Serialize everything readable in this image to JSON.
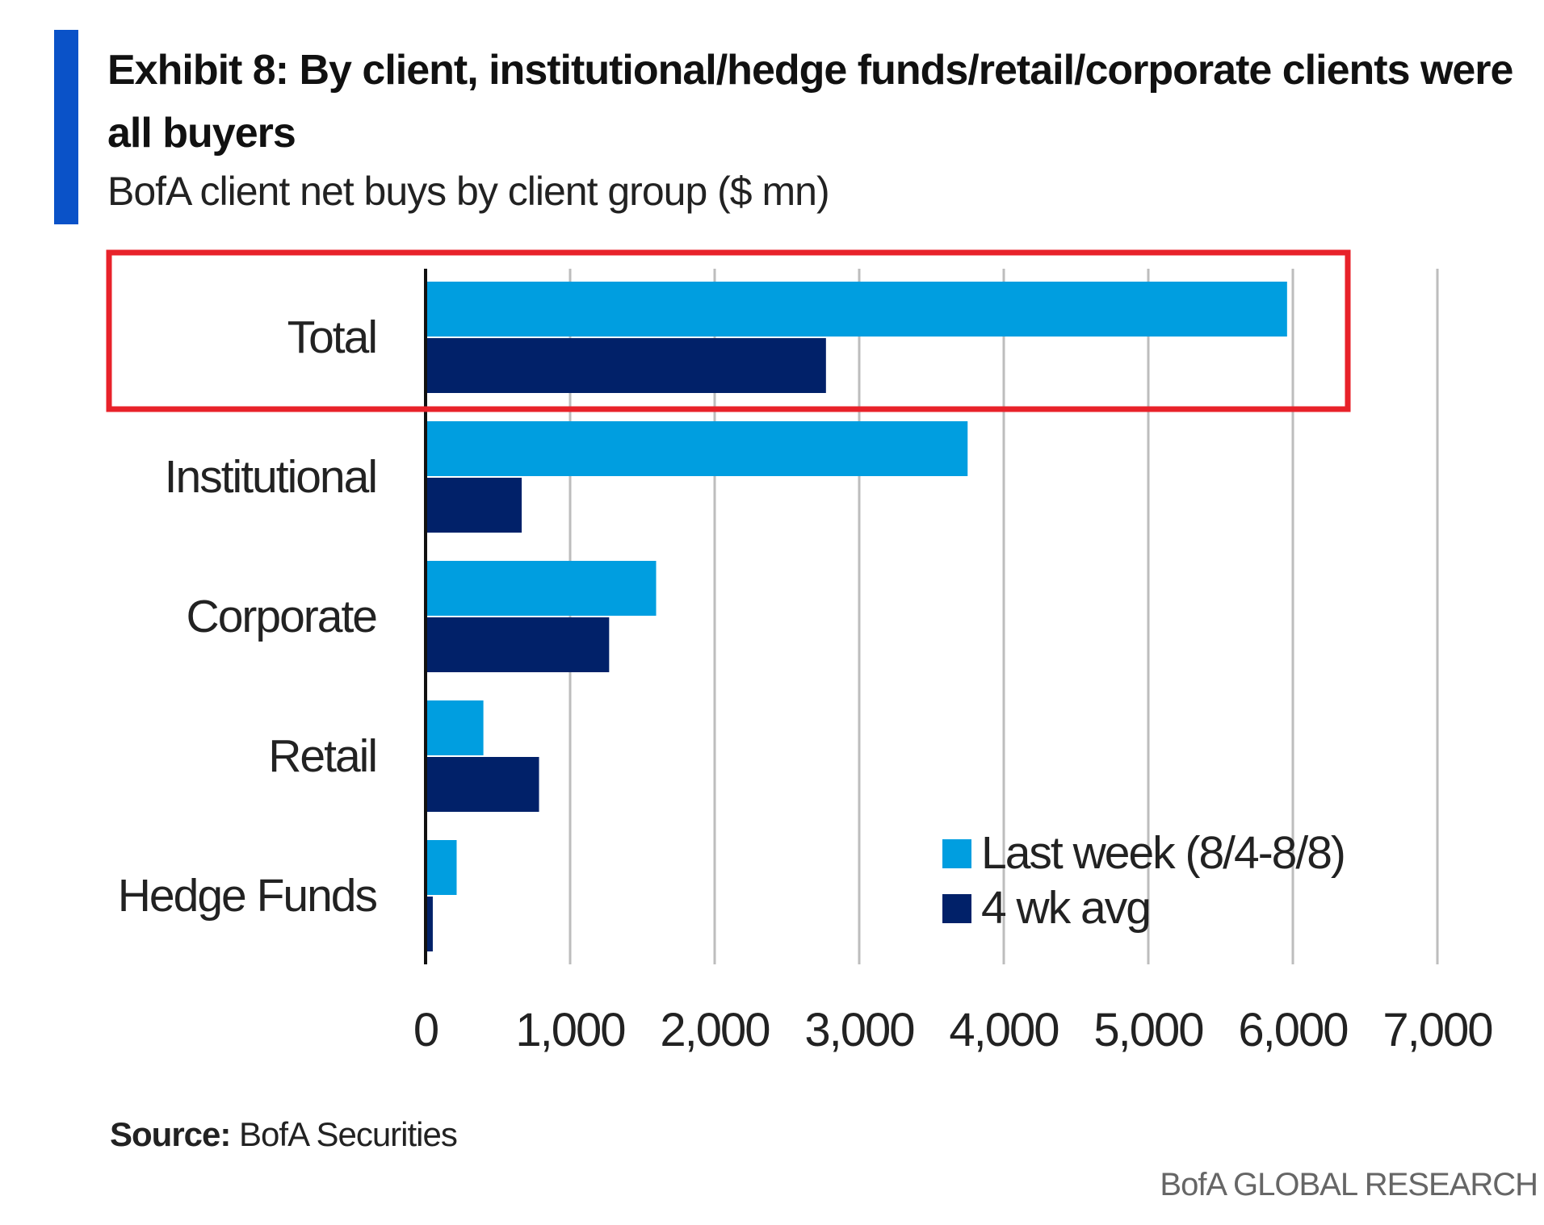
{
  "header": {
    "title": "Exhibit 8: By client, institutional/hedge funds/retail/corporate clients were all buyers",
    "subtitle": "BofA client net buys by client group ($ mn)"
  },
  "footer": {
    "source_label": "Source:",
    "source_text": " BofA Securities",
    "brand": "BofA GLOBAL RESEARCH"
  },
  "colors": {
    "accent": "#0a52c8",
    "last_week": "#009ee0",
    "avg": "#012169",
    "highlight": "#e8222a",
    "grid": "#bdbdbd"
  },
  "chart_data": {
    "type": "bar",
    "orientation": "horizontal",
    "title": "Exhibit 8: By client, institutional/hedge funds/retail/corporate clients were all buyers",
    "subtitle": "BofA client net buys by client group ($ mn)",
    "categories": [
      "Total",
      "Institutional",
      "Corporate",
      "Retail",
      "Hedge Funds"
    ],
    "series": [
      {
        "name": "Last week (8/4-8/8)",
        "color": "#009ee0",
        "values": [
          5960,
          3750,
          1595,
          400,
          215
        ]
      },
      {
        "name": "4 wk avg",
        "color": "#012169",
        "values": [
          2770,
          665,
          1270,
          785,
          50
        ]
      }
    ],
    "xlim": [
      0,
      7000
    ],
    "xticks": [
      "0",
      "1,000",
      "2,000",
      "3,000",
      "4,000",
      "5,000",
      "6,000",
      "7,000"
    ],
    "grid": "vertical",
    "legend": "bottom-right",
    "highlighted_category": "Total"
  }
}
